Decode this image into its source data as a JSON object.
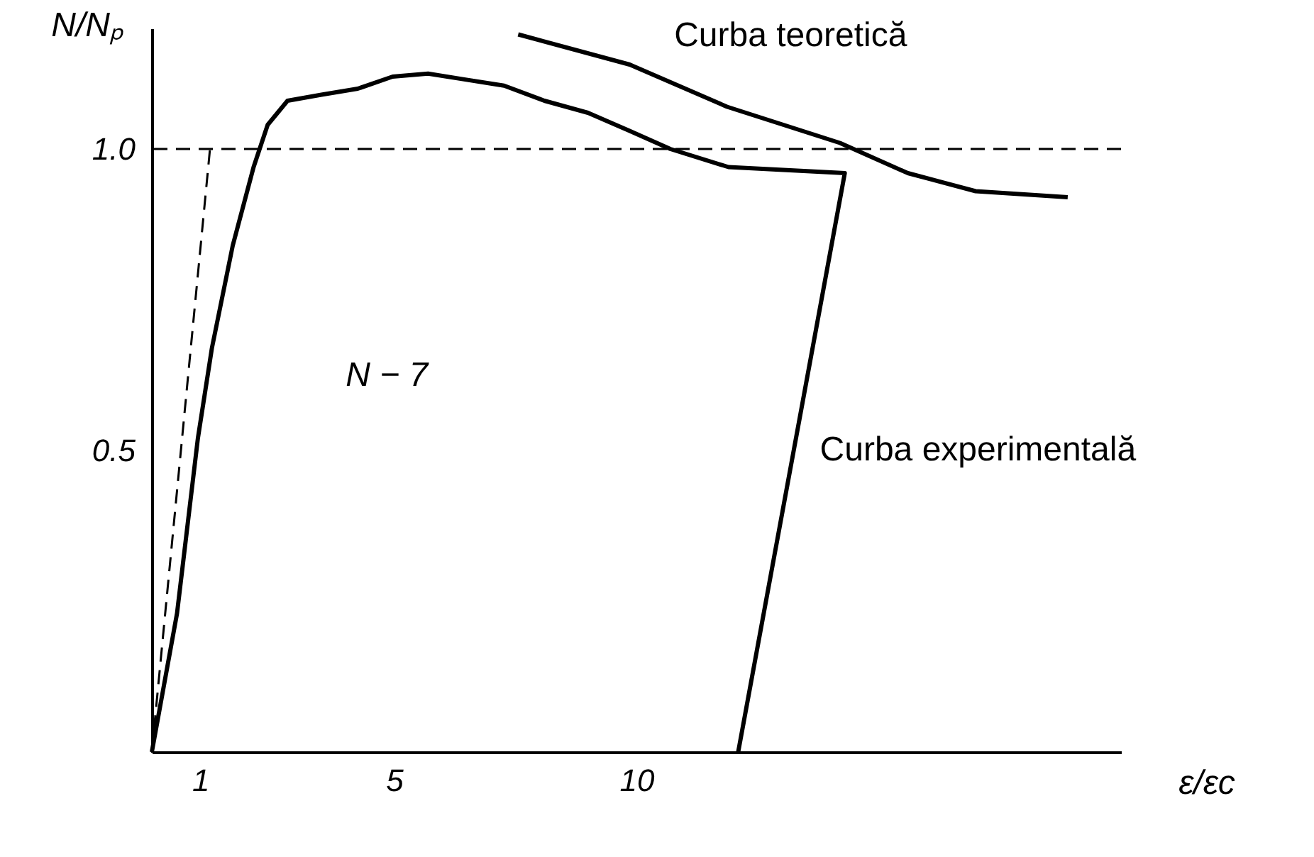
{
  "chart_data": {
    "type": "line",
    "xlabel": "ε/εc",
    "ylabel": "N/Nₚ",
    "xlim": [
      0,
      20
    ],
    "ylim": [
      0,
      1.2
    ],
    "xticks": [
      1,
      5,
      10
    ],
    "yticks": [
      {
        "value": 0.5,
        "label": "0.5"
      },
      {
        "value": 1.0,
        "label": "1.0"
      }
    ],
    "marker": "none",
    "series": [
      {
        "color": "#000000",
        "line_style": "solid",
        "x": [
          0,
          0.52,
          0.95,
          1.24,
          1.67,
          2.1,
          2.39,
          2.8,
          3.5,
          4.25,
          4.97,
          5.7,
          6.4,
          7.27,
          8.1,
          9.0,
          9.86,
          10.7,
          11.9,
          14.3,
          12.1
        ],
        "values": [
          0,
          0.23,
          0.52,
          0.67,
          0.84,
          0.97,
          1.04,
          1.08,
          1.09,
          1.1,
          1.12,
          1.125,
          1.116,
          1.105,
          1.08,
          1.06,
          1.03,
          1.0,
          0.97,
          0.96,
          0
        ]
      },
      {
        "color": "#000000",
        "line_style": "solid",
        "x": [
          7.56,
          9.86,
          11.87,
          14.2,
          15.6,
          17.0,
          18.9
        ],
        "values": [
          1.19,
          1.14,
          1.07,
          1.01,
          0.96,
          0.93,
          0.92
        ]
      },
      {
        "color": "#000000",
        "line_style": "dashed",
        "x": [
          0,
          1.2
        ],
        "values": [
          0,
          1.0
        ]
      }
    ],
    "ref_lines": [
      {
        "axis": "y",
        "value": 1.0,
        "color": "#000000",
        "line_style": "dashed"
      }
    ],
    "annotations": [
      {
        "text": "Curba teoretică",
        "x": 9.9,
        "y": 1.14
      },
      {
        "text": "Curba experimentală",
        "x": 13.2,
        "y": 0.5
      },
      "N − 7"
    ]
  }
}
